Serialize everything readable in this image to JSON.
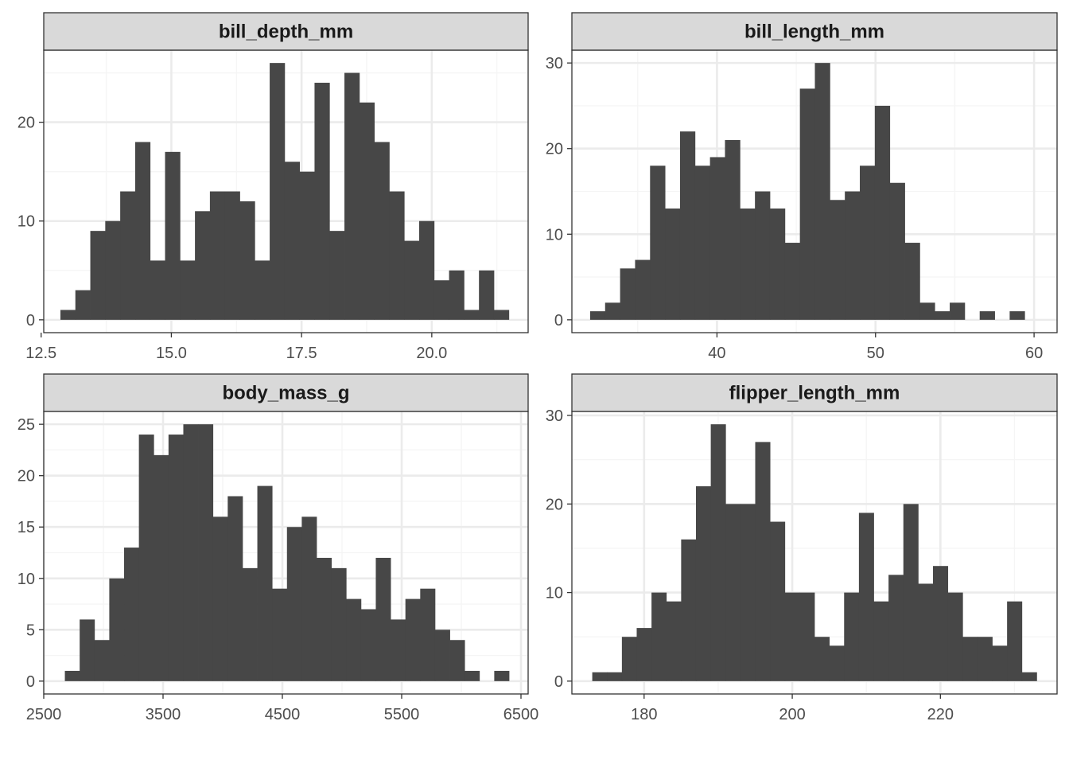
{
  "chart_data": [
    {
      "type": "bar",
      "title": "bill_depth_mm",
      "xlim": [
        12.55,
        21.85
      ],
      "ylim": [
        -1.3,
        27.3
      ],
      "xticks": [
        "12.5",
        "15.0",
        "17.5",
        "20.0"
      ],
      "xtick_values": [
        12.5,
        15.0,
        17.5,
        20.0
      ],
      "xminor": [
        13.75,
        16.25,
        18.75,
        21.25
      ],
      "yticks": [
        "0",
        "10",
        "20"
      ],
      "ytick_values": [
        0,
        10,
        20
      ],
      "yminor": [
        5,
        15,
        25
      ],
      "bins": {
        "start": 12.87,
        "width": 0.287
      },
      "values": [
        1,
        3,
        9,
        10,
        13,
        18,
        6,
        17,
        6,
        11,
        13,
        13,
        12,
        6,
        26,
        16,
        15,
        24,
        9,
        25,
        22,
        18,
        13,
        8,
        10,
        4,
        5,
        1,
        5,
        1
      ]
    },
    {
      "type": "bar",
      "title": "bill_length_mm",
      "xlim": [
        30.85,
        61.45
      ],
      "ylim": [
        -1.5,
        31.5
      ],
      "xticks": [
        "40",
        "50",
        "60"
      ],
      "xtick_values": [
        40,
        50,
        60
      ],
      "xminor": [
        35,
        45,
        55
      ],
      "yticks": [
        "0",
        "10",
        "20",
        "30"
      ],
      "ytick_values": [
        0,
        10,
        20,
        30
      ],
      "yminor": [
        5,
        15,
        25
      ],
      "bins": {
        "start": 32.0,
        "width": 0.945
      },
      "values": [
        1,
        2,
        6,
        7,
        18,
        13,
        22,
        18,
        19,
        21,
        13,
        15,
        13,
        9,
        27,
        30,
        14,
        15,
        18,
        25,
        16,
        9,
        2,
        1,
        2,
        0,
        1,
        0,
        1,
        0
      ]
    },
    {
      "type": "bar",
      "title": "body_mass_g",
      "xlim": [
        2500,
        6560
      ],
      "ylim": [
        -1.25,
        26.25
      ],
      "xticks": [
        "2500",
        "3500",
        "4500",
        "5500",
        "6500"
      ],
      "xtick_values": [
        2500,
        3500,
        4500,
        5500,
        6500
      ],
      "xminor": [
        3000,
        4000,
        5000,
        6000
      ],
      "yticks": [
        "0",
        "5",
        "10",
        "15",
        "20",
        "25"
      ],
      "ytick_values": [
        0,
        5,
        10,
        15,
        20,
        25
      ],
      "yminor": [
        2.5,
        7.5,
        12.5,
        17.5,
        22.5
      ],
      "bins": {
        "start": 2677,
        "width": 124.1
      },
      "values": [
        1,
        6,
        4,
        10,
        13,
        24,
        22,
        24,
        25,
        25,
        16,
        18,
        11,
        19,
        9,
        15,
        16,
        12,
        11,
        8,
        7,
        12,
        6,
        8,
        9,
        5,
        4,
        1,
        0,
        1
      ]
    },
    {
      "type": "bar",
      "title": "flipper_length_mm",
      "xlim": [
        170.25,
        235.75
      ],
      "ylim": [
        -1.45,
        30.45
      ],
      "xticks": [
        "180",
        "200",
        "220"
      ],
      "xtick_values": [
        180,
        200,
        220
      ],
      "xminor": [
        170,
        190,
        210,
        230
      ],
      "yticks": [
        "0",
        "10",
        "20",
        "30"
      ],
      "ytick_values": [
        0,
        10,
        20,
        30
      ],
      "yminor": [
        5,
        15,
        25
      ],
      "bins": {
        "start": 173.0,
        "width": 2.0
      },
      "values": [
        1,
        1,
        5,
        6,
        10,
        9,
        16,
        22,
        29,
        20,
        20,
        27,
        18,
        10,
        10,
        5,
        4,
        10,
        19,
        9,
        12,
        20,
        11,
        13,
        10,
        5,
        5,
        4,
        9,
        1
      ]
    }
  ],
  "colors": {
    "bar": "#474747",
    "strip": "#d9d9d9",
    "panel_border": "#333333",
    "grid_major": "#ebebeb",
    "grid_minor": "#f5f5f5"
  }
}
